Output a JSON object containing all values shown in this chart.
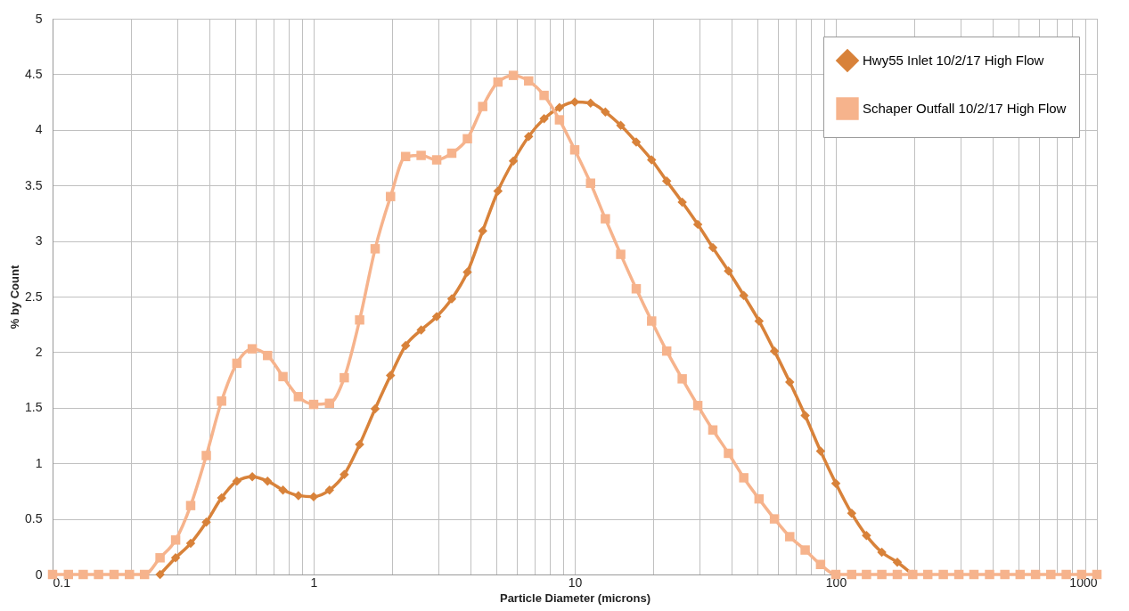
{
  "chart_data": {
    "type": "line",
    "xlabel": "Particle Diameter (microns)",
    "ylabel": "% by Count",
    "x": [
      0.1,
      0.115,
      0.131,
      0.15,
      0.172,
      0.197,
      0.225,
      0.258,
      0.296,
      0.338,
      0.388,
      0.444,
      0.508,
      0.582,
      0.666,
      0.763,
      0.874,
      1,
      1.15,
      1.31,
      1.5,
      1.72,
      1.97,
      2.25,
      2.58,
      2.96,
      3.38,
      3.88,
      4.44,
      5.08,
      5.82,
      6.66,
      7.63,
      8.74,
      10,
      11.5,
      13.1,
      15,
      17.2,
      19.7,
      22.5,
      25.8,
      29.6,
      33.8,
      38.8,
      44.4,
      50.8,
      58.2,
      66.6,
      76.3,
      87.4,
      100,
      115,
      131,
      150,
      172,
      197,
      225,
      258,
      296,
      338,
      388,
      444,
      508,
      582,
      666,
      763,
      874,
      1000
    ],
    "series": [
      {
        "name": "Hwy55 Inlet 10/2/17 High Flow",
        "color": "#d8823a",
        "marker": "diamond",
        "values": [
          null,
          null,
          null,
          null,
          null,
          null,
          null,
          0,
          0.15,
          0.28,
          0.47,
          0.69,
          0.84,
          0.88,
          0.84,
          0.76,
          0.71,
          0.7,
          0.76,
          0.9,
          1.17,
          1.49,
          1.79,
          2.06,
          2.2,
          2.32,
          2.48,
          2.72,
          3.09,
          3.45,
          3.72,
          3.94,
          4.1,
          4.2,
          4.25,
          4.24,
          4.16,
          4.04,
          3.89,
          3.73,
          3.54,
          3.35,
          3.15,
          2.94,
          2.73,
          2.51,
          2.28,
          2.01,
          1.73,
          1.43,
          1.11,
          0.82,
          0.55,
          0.35,
          0.2,
          0.11,
          0,
          null,
          null,
          null,
          null,
          null,
          null,
          null,
          null,
          null,
          null,
          null,
          null
        ]
      },
      {
        "name": "Schaper Outfall 10/2/17 High Flow",
        "color": "#f6b38c",
        "marker": "square",
        "values": [
          0,
          0,
          0,
          0,
          0,
          0,
          0,
          0.15,
          0.31,
          0.62,
          1.07,
          1.56,
          1.9,
          2.03,
          1.97,
          1.78,
          1.6,
          1.53,
          1.54,
          1.77,
          2.29,
          2.93,
          3.4,
          3.76,
          3.77,
          3.73,
          3.79,
          3.92,
          4.21,
          4.43,
          4.49,
          4.44,
          4.31,
          4.09,
          3.82,
          3.52,
          3.2,
          2.88,
          2.57,
          2.28,
          2.01,
          1.76,
          1.52,
          1.3,
          1.09,
          0.87,
          0.68,
          0.5,
          0.34,
          0.22,
          0.09,
          0,
          0,
          0,
          0,
          0,
          0,
          0,
          0,
          0,
          0,
          0,
          0,
          0,
          0,
          0,
          0,
          0,
          0
        ]
      }
    ],
    "log": "x",
    "xlim": [
      0.1,
      1000
    ],
    "xticks": [
      0.1,
      {
        "value": 0.2,
        "label": null
      },
      {
        "value": 0.3,
        "label": null
      },
      {
        "value": 0.4,
        "label": null
      },
      {
        "value": 0.5,
        "label": null
      },
      {
        "value": 0.6,
        "label": null
      },
      {
        "value": 0.7,
        "label": null
      },
      {
        "value": 0.8,
        "label": null
      },
      {
        "value": 0.9,
        "label": null
      },
      1,
      {
        "value": 2,
        "label": null
      },
      {
        "value": 3,
        "label": null
      },
      {
        "value": 4,
        "label": null
      },
      {
        "value": 5,
        "label": null
      },
      {
        "value": 6,
        "label": null
      },
      {
        "value": 7,
        "label": null
      },
      {
        "value": 8,
        "label": null
      },
      {
        "value": 9,
        "label": null
      },
      10,
      {
        "value": 20,
        "label": null
      },
      {
        "value": 30,
        "label": null
      },
      {
        "value": 40,
        "label": null
      },
      {
        "value": 50,
        "label": null
      },
      {
        "value": 60,
        "label": null
      },
      {
        "value": 70,
        "label": null
      },
      {
        "value": 80,
        "label": null
      },
      {
        "value": 90,
        "label": null
      },
      100,
      {
        "value": 200,
        "label": null
      },
      {
        "value": 300,
        "label": null
      },
      {
        "value": 400,
        "label": null
      },
      {
        "value": 500,
        "label": null
      },
      {
        "value": 600,
        "label": null
      },
      {
        "value": 700,
        "label": null
      },
      {
        "value": 800,
        "label": null
      },
      {
        "value": 900,
        "label": null
      },
      1000
    ],
    "ylim": [
      0,
      5
    ],
    "yticks": [
      0,
      0.5,
      1,
      1.5,
      2,
      2.5,
      3,
      3.5,
      4,
      4.5,
      5
    ],
    "grid": true,
    "legend": "top right"
  }
}
